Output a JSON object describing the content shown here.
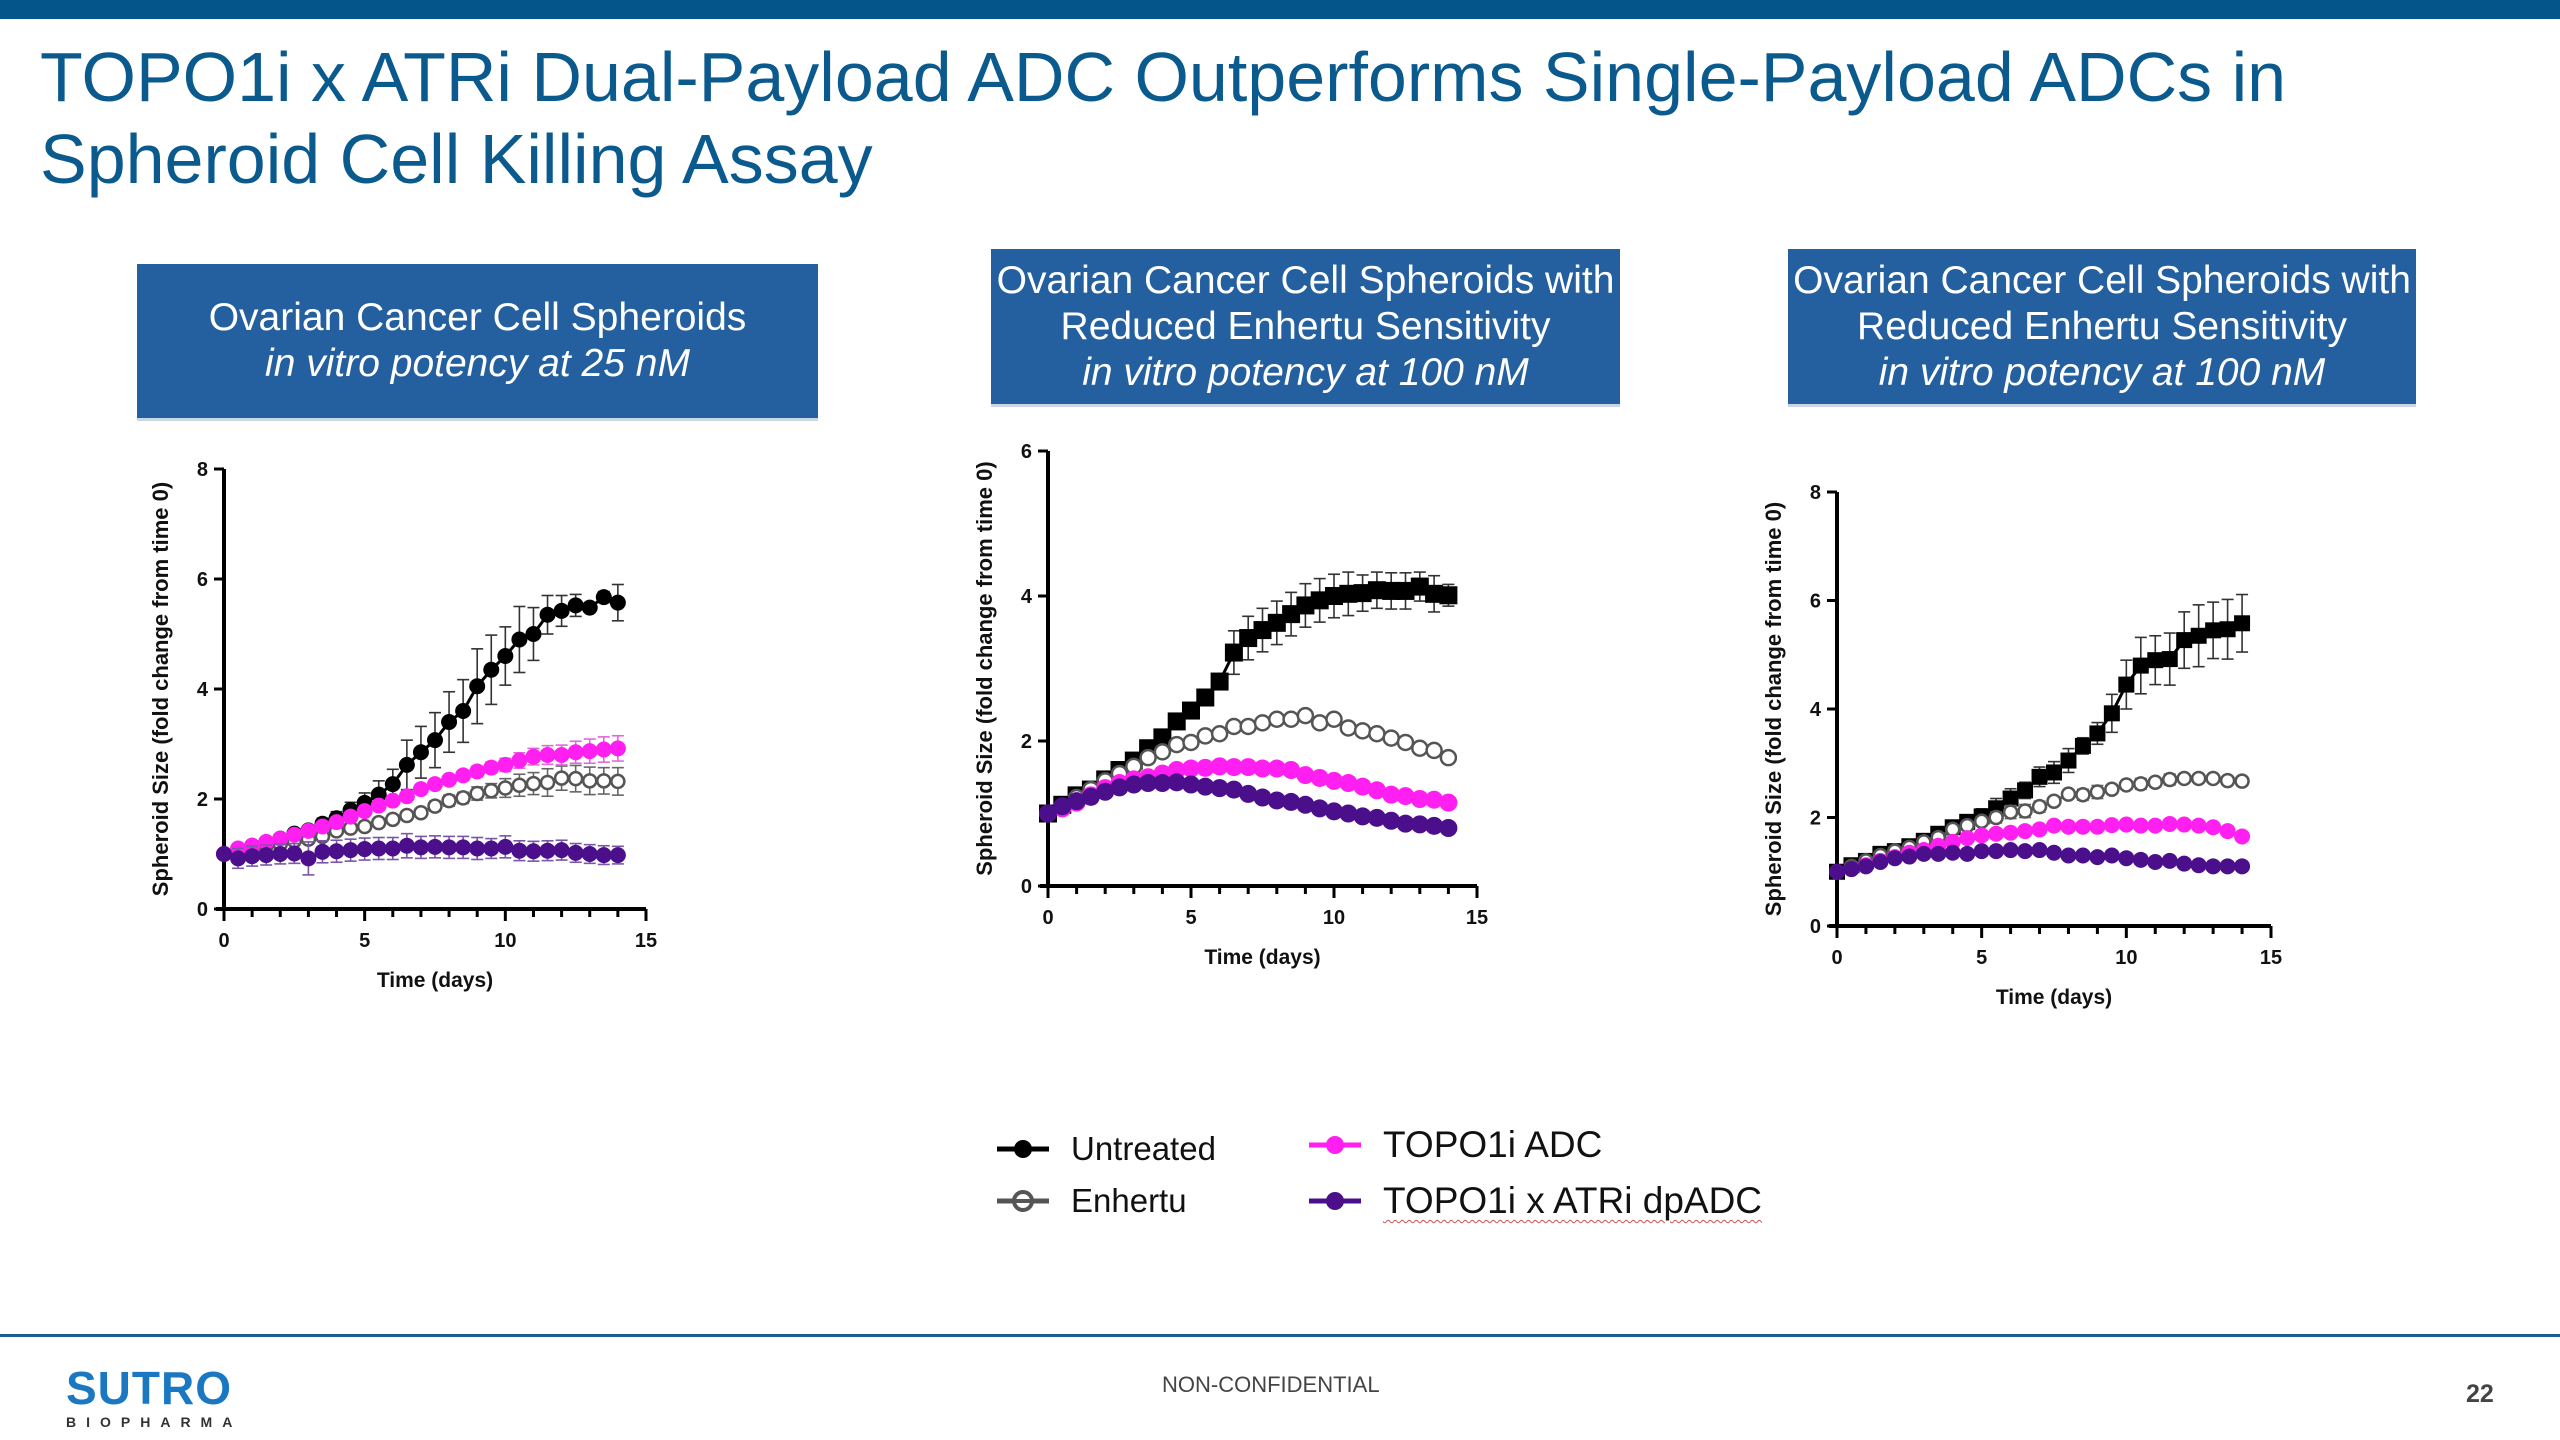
{
  "slide": {
    "title": "TOPO1i x ATRi Dual-Payload ADC Outperforms Single-Payload ADCs in Spheroid Cell Killing Assay",
    "footer_label": "NON-CONFIDENTIAL",
    "page_number": "22",
    "logo": {
      "main": "SUTRO",
      "sub": "BIOPHARMA"
    },
    "colors": {
      "brand_blue": "#0b5a8e",
      "banner_blue": "#2460a0",
      "untreated": "#000000",
      "enhertu": "#555555",
      "topo1i_adc": "#ff1ff0",
      "dpadc": "#4b0f8c"
    }
  },
  "banners": [
    {
      "line1": "Ovarian Cancer Cell Spheroids",
      "line2": "",
      "sub": "in vitro potency at 25 nM"
    },
    {
      "line1": "Ovarian Cancer Cell Spheroids with",
      "line2": "Reduced Enhertu Sensitivity",
      "sub": "in vitro potency at 100 nM"
    },
    {
      "line1": "Ovarian Cancer Cell Spheroids with",
      "line2": "Reduced Enhertu Sensitivity",
      "sub": "in vitro potency at 100 nM"
    }
  ],
  "legend": [
    {
      "name": "Untreated",
      "marker": "filled-circle",
      "color": "#000000"
    },
    {
      "name": "Enhertu",
      "marker": "open-circle",
      "color": "#555555"
    },
    {
      "name": "TOPO1i ADC",
      "marker": "filled-circle",
      "color": "#ff1ff0"
    },
    {
      "name": "TOPO1i x ATRi dpADC",
      "marker": "filled-circle",
      "color": "#4b0f8c"
    }
  ],
  "chart_data": [
    {
      "type": "line",
      "title": "Ovarian Cancer Cell Spheroids — in vitro potency at 25 nM",
      "xlabel": "Time (days)",
      "ylabel": "Spheroid Size (fold change from time 0)",
      "xlim": [
        0,
        15
      ],
      "ylim": [
        0,
        8
      ],
      "xticks": [
        0,
        5,
        10,
        15
      ],
      "yticks": [
        0,
        2,
        4,
        6,
        8
      ],
      "grid": false,
      "x": [
        0,
        0.5,
        1,
        1.5,
        2,
        2.5,
        3,
        3.5,
        4,
        4.5,
        5,
        5.5,
        6,
        6.5,
        7,
        7.5,
        8,
        8.5,
        9,
        9.5,
        10,
        10.5,
        11,
        11.5,
        12,
        12.5,
        13,
        13.5,
        14
      ],
      "series": [
        {
          "name": "Untreated",
          "marker": "circle",
          "values": [
            1.0,
            1.05,
            1.15,
            1.2,
            1.28,
            1.37,
            1.43,
            1.55,
            1.65,
            1.8,
            1.93,
            2.08,
            2.27,
            2.62,
            2.85,
            3.07,
            3.4,
            3.6,
            4.05,
            4.35,
            4.6,
            4.9,
            5.0,
            5.35,
            5.42,
            5.52,
            5.48,
            5.67,
            5.57
          ],
          "errors": [
            0,
            0.03,
            0.04,
            0.05,
            0.06,
            0.07,
            0.08,
            0.1,
            0.12,
            0.14,
            0.18,
            0.25,
            0.27,
            0.45,
            0.47,
            0.5,
            0.55,
            0.57,
            0.68,
            0.63,
            0.53,
            0.6,
            0.48,
            0.35,
            0.28,
            0.2,
            0.05,
            0.1,
            0.33
          ]
        },
        {
          "name": "Enhertu",
          "marker": "open-circle",
          "values": [
            1.0,
            1.07,
            1.1,
            1.15,
            1.18,
            1.24,
            1.27,
            1.32,
            1.42,
            1.47,
            1.5,
            1.57,
            1.63,
            1.7,
            1.75,
            1.87,
            1.97,
            2.02,
            2.1,
            2.15,
            2.2,
            2.25,
            2.28,
            2.3,
            2.38,
            2.37,
            2.33,
            2.33,
            2.32
          ],
          "errors": [
            0,
            0.03,
            0.03,
            0.04,
            0.04,
            0.05,
            0.05,
            0.06,
            0.06,
            0.07,
            0.07,
            0.07,
            0.08,
            0.08,
            0.08,
            0.09,
            0.1,
            0.1,
            0.12,
            0.13,
            0.17,
            0.2,
            0.2,
            0.25,
            0.22,
            0.24,
            0.25,
            0.24,
            0.25
          ]
        },
        {
          "name": "TOPO1i ADC",
          "marker": "circle",
          "values": [
            1.0,
            1.1,
            1.15,
            1.22,
            1.28,
            1.35,
            1.42,
            1.5,
            1.58,
            1.68,
            1.78,
            1.88,
            1.97,
            2.05,
            2.18,
            2.27,
            2.35,
            2.43,
            2.5,
            2.57,
            2.62,
            2.7,
            2.77,
            2.8,
            2.8,
            2.85,
            2.87,
            2.9,
            2.92
          ],
          "errors": [
            0,
            0.03,
            0.03,
            0.04,
            0.04,
            0.05,
            0.05,
            0.05,
            0.06,
            0.06,
            0.06,
            0.07,
            0.07,
            0.07,
            0.07,
            0.08,
            0.08,
            0.09,
            0.1,
            0.1,
            0.12,
            0.14,
            0.15,
            0.17,
            0.18,
            0.2,
            0.22,
            0.23,
            0.23
          ]
        },
        {
          "name": "TOPO1i x ATRi dpADC",
          "marker": "circle",
          "values": [
            1.0,
            0.92,
            0.96,
            0.98,
            1.0,
            1.01,
            0.92,
            1.04,
            1.05,
            1.07,
            1.09,
            1.1,
            1.1,
            1.15,
            1.12,
            1.13,
            1.12,
            1.12,
            1.1,
            1.1,
            1.13,
            1.06,
            1.05,
            1.06,
            1.07,
            1.02,
            1.0,
            0.98,
            0.98
          ],
          "errors": [
            0,
            0.18,
            0.18,
            0.18,
            0.18,
            0.18,
            0.3,
            0.2,
            0.2,
            0.2,
            0.2,
            0.2,
            0.2,
            0.22,
            0.2,
            0.2,
            0.2,
            0.2,
            0.2,
            0.18,
            0.2,
            0.18,
            0.18,
            0.18,
            0.18,
            0.17,
            0.17,
            0.17,
            0.16
          ]
        }
      ]
    },
    {
      "type": "line",
      "title": "Ovarian Cancer Cell Spheroids with Reduced Enhertu Sensitivity — in vitro potency at 100 nM",
      "xlabel": "Time (days)",
      "ylabel": "Spheroid Size (fold change from time 0)",
      "xlim": [
        0,
        15
      ],
      "ylim": [
        0,
        6
      ],
      "xticks": [
        0,
        5,
        10,
        15
      ],
      "yticks": [
        0,
        2,
        4,
        6
      ],
      "grid": false,
      "x": [
        0,
        0.5,
        1,
        1.5,
        2,
        2.5,
        3,
        3.5,
        4,
        4.5,
        5,
        5.5,
        6,
        6.5,
        7,
        7.5,
        8,
        8.5,
        9,
        9.5,
        10,
        10.5,
        11,
        11.5,
        12,
        12.5,
        13,
        13.5,
        14
      ],
      "series": [
        {
          "name": "Untreated",
          "marker": "square",
          "values": [
            1.0,
            1.12,
            1.25,
            1.33,
            1.47,
            1.6,
            1.73,
            1.9,
            2.05,
            2.27,
            2.42,
            2.6,
            2.82,
            3.22,
            3.42,
            3.53,
            3.63,
            3.75,
            3.87,
            3.94,
            4.0,
            4.03,
            4.04,
            4.08,
            4.07,
            4.07,
            4.13,
            4.03,
            4.01
          ],
          "errors": [
            0,
            0.03,
            0.04,
            0.04,
            0.05,
            0.06,
            0.06,
            0.07,
            0.08,
            0.1,
            0.1,
            0.1,
            0.1,
            0.3,
            0.3,
            0.3,
            0.3,
            0.3,
            0.3,
            0.3,
            0.3,
            0.3,
            0.25,
            0.25,
            0.25,
            0.25,
            0.2,
            0.25,
            0.15
          ]
        },
        {
          "name": "Enhertu",
          "marker": "open-circle",
          "values": [
            1.0,
            1.1,
            1.22,
            1.33,
            1.45,
            1.55,
            1.65,
            1.77,
            1.85,
            1.95,
            1.98,
            2.07,
            2.1,
            2.2,
            2.2,
            2.25,
            2.3,
            2.3,
            2.35,
            2.25,
            2.3,
            2.18,
            2.14,
            2.1,
            2.04,
            1.98,
            1.9,
            1.87,
            1.77
          ],
          "errors": [
            0,
            0.02,
            0.02,
            0.02,
            0.02,
            0.02,
            0.02,
            0.02,
            0.03,
            0.03,
            0.03,
            0.03,
            0.03,
            0.03,
            0.03,
            0.03,
            0.04,
            0.04,
            0.08,
            0.04,
            0.08,
            0.04,
            0.03,
            0.03,
            0.03,
            0.03,
            0.03,
            0.03,
            0.03
          ]
        },
        {
          "name": "TOPO1i ADC",
          "marker": "circle",
          "values": [
            1.0,
            1.07,
            1.15,
            1.25,
            1.35,
            1.42,
            1.47,
            1.5,
            1.55,
            1.6,
            1.62,
            1.63,
            1.65,
            1.64,
            1.64,
            1.62,
            1.62,
            1.6,
            1.53,
            1.49,
            1.45,
            1.42,
            1.37,
            1.32,
            1.26,
            1.24,
            1.2,
            1.19,
            1.15
          ],
          "errors": [
            0,
            0.02,
            0.02,
            0.02,
            0.03,
            0.03,
            0.03,
            0.04,
            0.05,
            0.06,
            0.06,
            0.08,
            0.08,
            0.08,
            0.08,
            0.08,
            0.08,
            0.08,
            0.08,
            0.08,
            0.08,
            0.08,
            0.08,
            0.08,
            0.08,
            0.08,
            0.07,
            0.07,
            0.06
          ]
        },
        {
          "name": "TOPO1i x ATRi dpADC",
          "marker": "circle",
          "values": [
            1.0,
            1.1,
            1.17,
            1.23,
            1.3,
            1.36,
            1.4,
            1.42,
            1.42,
            1.43,
            1.4,
            1.37,
            1.35,
            1.33,
            1.27,
            1.22,
            1.18,
            1.16,
            1.12,
            1.07,
            1.03,
            1.0,
            0.96,
            0.94,
            0.9,
            0.86,
            0.85,
            0.83,
            0.8
          ],
          "errors": [
            0,
            0.02,
            0.02,
            0.02,
            0.02,
            0.02,
            0.02,
            0.02,
            0.02,
            0.02,
            0.02,
            0.02,
            0.02,
            0.02,
            0.02,
            0.02,
            0.02,
            0.03,
            0.03,
            0.03,
            0.03,
            0.02,
            0.02,
            0.02,
            0.02,
            0.02,
            0.02,
            0.02,
            0.02
          ]
        }
      ]
    },
    {
      "type": "line",
      "title": "Ovarian Cancer Cell Spheroids with Reduced Enhertu Sensitivity — in vitro potency at 100 nM",
      "xlabel": "Time (days)",
      "ylabel": "Spheroid Size (fold change from time 0)",
      "xlim": [
        0,
        15
      ],
      "ylim": [
        0,
        8
      ],
      "xticks": [
        0,
        5,
        10,
        15
      ],
      "yticks": [
        0,
        2,
        4,
        6,
        8
      ],
      "grid": false,
      "x": [
        0,
        0.5,
        1,
        1.5,
        2,
        2.5,
        3,
        3.5,
        4,
        4.5,
        5,
        5.5,
        6,
        6.5,
        7,
        7.5,
        8,
        8.5,
        9,
        9.5,
        10,
        10.5,
        11,
        11.5,
        12,
        12.5,
        13,
        13.5,
        14
      ],
      "series": [
        {
          "name": "Untreated",
          "marker": "square",
          "values": [
            1.0,
            1.12,
            1.2,
            1.33,
            1.38,
            1.47,
            1.57,
            1.7,
            1.82,
            1.92,
            2.02,
            2.17,
            2.35,
            2.5,
            2.75,
            2.83,
            3.05,
            3.32,
            3.55,
            3.92,
            4.45,
            4.8,
            4.9,
            4.92,
            5.27,
            5.35,
            5.45,
            5.47,
            5.58
          ],
          "errors": [
            0,
            0.03,
            0.04,
            0.05,
            0.1,
            0.1,
            0.08,
            0.1,
            0.12,
            0.13,
            0.14,
            0.18,
            0.18,
            0.15,
            0.18,
            0.2,
            0.22,
            0.15,
            0.2,
            0.35,
            0.45,
            0.52,
            0.45,
            0.48,
            0.52,
            0.57,
            0.52,
            0.55,
            0.53
          ]
        },
        {
          "name": "Enhertu",
          "marker": "open-circle",
          "values": [
            1.0,
            1.1,
            1.2,
            1.3,
            1.38,
            1.45,
            1.55,
            1.63,
            1.78,
            1.85,
            1.93,
            2.0,
            2.1,
            2.12,
            2.2,
            2.3,
            2.43,
            2.42,
            2.47,
            2.52,
            2.6,
            2.62,
            2.65,
            2.7,
            2.72,
            2.72,
            2.72,
            2.68,
            2.67
          ],
          "errors": [
            0,
            0.02,
            0.03,
            0.03,
            0.05,
            0.05,
            0.05,
            0.06,
            0.08,
            0.08,
            0.08,
            0.1,
            0.12,
            0.12,
            0.1,
            0.06,
            0.08,
            0.1,
            0.12,
            0.08,
            0.05,
            0.1,
            0.08,
            0.1,
            0.05,
            0.05,
            0.05,
            0.05,
            0.08
          ]
        },
        {
          "name": "TOPO1i ADC",
          "marker": "circle",
          "values": [
            1.0,
            1.05,
            1.12,
            1.2,
            1.27,
            1.35,
            1.4,
            1.48,
            1.55,
            1.62,
            1.67,
            1.7,
            1.72,
            1.75,
            1.78,
            1.85,
            1.83,
            1.83,
            1.83,
            1.86,
            1.87,
            1.85,
            1.85,
            1.88,
            1.87,
            1.85,
            1.82,
            1.75,
            1.65
          ],
          "errors": [
            0,
            0.02,
            0.02,
            0.02,
            0.02,
            0.02,
            0.02,
            0.02,
            0.03,
            0.03,
            0.03,
            0.03,
            0.03,
            0.03,
            0.07,
            0.03,
            0.03,
            0.03,
            0.03,
            0.03,
            0.03,
            0.03,
            0.03,
            0.03,
            0.03,
            0.03,
            0.03,
            0.03,
            0.03
          ]
        },
        {
          "name": "TOPO1i x ATRi dpADC",
          "marker": "circle",
          "values": [
            1.0,
            1.05,
            1.1,
            1.18,
            1.25,
            1.28,
            1.33,
            1.33,
            1.35,
            1.33,
            1.38,
            1.38,
            1.4,
            1.38,
            1.4,
            1.35,
            1.3,
            1.3,
            1.27,
            1.3,
            1.25,
            1.22,
            1.18,
            1.2,
            1.15,
            1.12,
            1.1,
            1.1,
            1.1
          ],
          "errors": [
            0,
            0.02,
            0.02,
            0.02,
            0.02,
            0.02,
            0.02,
            0.02,
            0.02,
            0.02,
            0.02,
            0.02,
            0.07,
            0.05,
            0.02,
            0.02,
            0.02,
            0.02,
            0.02,
            0.02,
            0.02,
            0.02,
            0.02,
            0.02,
            0.02,
            0.02,
            0.02,
            0.02,
            0.02
          ]
        }
      ]
    }
  ]
}
